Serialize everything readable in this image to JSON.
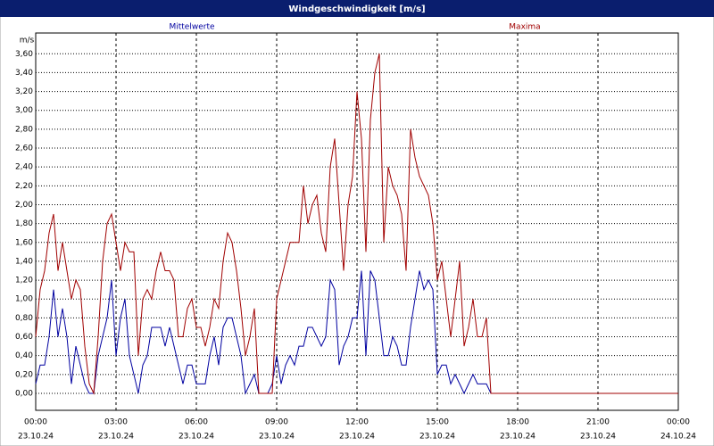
{
  "chart_data": {
    "type": "line",
    "title": "Windgeschwindigkeit [m/s]",
    "y_label": "m/s",
    "x": [
      0,
      10,
      20,
      30,
      40,
      50,
      60,
      70,
      80,
      90,
      100,
      110,
      120,
      130,
      140,
      150,
      160,
      170,
      180,
      190,
      200,
      210,
      220,
      230,
      240,
      250,
      260,
      270,
      280,
      290,
      300,
      310,
      320,
      330,
      340,
      350,
      360,
      370,
      380,
      390,
      400,
      410,
      420,
      430,
      440,
      450,
      460,
      470,
      480,
      490,
      500,
      510,
      520,
      530,
      540,
      550,
      560,
      570,
      580,
      590,
      600,
      610,
      620,
      630,
      640,
      650,
      660,
      670,
      680,
      690,
      700,
      710,
      720,
      730,
      740,
      750,
      760,
      770,
      780,
      790,
      800,
      810,
      820,
      830,
      840,
      850,
      860,
      870,
      880,
      890,
      900,
      910,
      920,
      930,
      940,
      950,
      960,
      970,
      980,
      990,
      1000,
      1010,
      1020,
      1440
    ],
    "series": [
      {
        "name": "Mittelwerte",
        "color": "#0000a0",
        "values": [
          0.1,
          0.3,
          0.3,
          0.6,
          1.1,
          0.6,
          0.9,
          0.6,
          0.1,
          0.5,
          0.3,
          0.1,
          0.0,
          0.0,
          0.4,
          0.6,
          0.8,
          1.2,
          0.4,
          0.8,
          1.0,
          0.4,
          0.2,
          0.0,
          0.3,
          0.4,
          0.7,
          0.7,
          0.7,
          0.5,
          0.7,
          0.5,
          0.3,
          0.1,
          0.3,
          0.3,
          0.1,
          0.1,
          0.1,
          0.4,
          0.6,
          0.3,
          0.7,
          0.8,
          0.8,
          0.6,
          0.4,
          0.0,
          0.1,
          0.2,
          0.0,
          0.0,
          0.0,
          0.1,
          0.4,
          0.1,
          0.3,
          0.4,
          0.3,
          0.5,
          0.5,
          0.7,
          0.7,
          0.6,
          0.5,
          0.6,
          1.2,
          1.1,
          0.3,
          0.5,
          0.6,
          0.8,
          0.8,
          1.3,
          0.4,
          1.3,
          1.2,
          0.8,
          0.4,
          0.4,
          0.6,
          0.5,
          0.3,
          0.3,
          0.7,
          1.0,
          1.3,
          1.1,
          1.2,
          1.1,
          0.2,
          0.3,
          0.3,
          0.1,
          0.2,
          0.1,
          0.0,
          0.1,
          0.2,
          0.1,
          0.1,
          0.1,
          0.0,
          0
        ]
      },
      {
        "name": "Maxima",
        "color": "#a00000",
        "values": [
          0.6,
          1.1,
          1.3,
          1.7,
          1.9,
          1.3,
          1.6,
          1.3,
          1.0,
          1.2,
          1.1,
          0.5,
          0.1,
          0.0,
          0.6,
          1.4,
          1.8,
          1.9,
          1.6,
          1.3,
          1.6,
          1.5,
          1.5,
          0.4,
          1.0,
          1.1,
          1.0,
          1.3,
          1.5,
          1.3,
          1.3,
          1.2,
          0.6,
          0.6,
          0.9,
          1.0,
          0.7,
          0.7,
          0.5,
          0.7,
          1.0,
          0.9,
          1.4,
          1.7,
          1.6,
          1.3,
          0.9,
          0.4,
          0.6,
          0.9,
          0.0,
          0.0,
          0.0,
          0.0,
          1.0,
          1.2,
          1.4,
          1.6,
          1.6,
          1.6,
          2.2,
          1.8,
          2.0,
          2.1,
          1.7,
          1.5,
          2.4,
          2.7,
          2.0,
          1.3,
          2.0,
          2.3,
          3.2,
          2.7,
          1.5,
          2.9,
          3.4,
          3.6,
          1.6,
          2.4,
          2.2,
          2.1,
          1.9,
          1.3,
          2.8,
          2.5,
          2.3,
          2.2,
          2.1,
          1.8,
          1.2,
          1.4,
          1.0,
          0.6,
          1.0,
          1.4,
          0.5,
          0.7,
          1.0,
          0.6,
          0.6,
          0.8,
          0.0,
          0
        ]
      }
    ],
    "xlim": [
      0,
      1440
    ],
    "xticks": [
      {
        "value": 0,
        "label": "00:00",
        "sublabel": "23.10.24"
      },
      {
        "value": 180,
        "label": "03:00",
        "sublabel": "23.10.24"
      },
      {
        "value": 360,
        "label": "06:00",
        "sublabel": "23.10.24"
      },
      {
        "value": 540,
        "label": "09:00",
        "sublabel": "23.10.24"
      },
      {
        "value": 720,
        "label": "12:00",
        "sublabel": "23.10.24"
      },
      {
        "value": 900,
        "label": "15:00",
        "sublabel": "23.10.24"
      },
      {
        "value": 1080,
        "label": "18:00",
        "sublabel": "23.10.24"
      },
      {
        "value": 1260,
        "label": "21:00",
        "sublabel": "23.10.24"
      },
      {
        "value": 1440,
        "label": "00:00",
        "sublabel": "24.10.24"
      }
    ],
    "ylim": [
      -0.18,
      3.82
    ],
    "yticks": [
      {
        "value": 0,
        "label": "0,00"
      },
      {
        "value": 0.2,
        "label": "0,20"
      },
      {
        "value": 0.4,
        "label": "0,40"
      },
      {
        "value": 0.6,
        "label": "0,60"
      },
      {
        "value": 0.8,
        "label": "0,80"
      },
      {
        "value": 1,
        "label": "1,00"
      },
      {
        "value": 1.2,
        "label": "1,20"
      },
      {
        "value": 1.4,
        "label": "1,40"
      },
      {
        "value": 1.6,
        "label": "1,60"
      },
      {
        "value": 1.8,
        "label": "1,80"
      },
      {
        "value": 2,
        "label": "2,00"
      },
      {
        "value": 2.2,
        "label": "2,20"
      },
      {
        "value": 2.4,
        "label": "2,40"
      },
      {
        "value": 2.6,
        "label": "2,60"
      },
      {
        "value": 2.8,
        "label": "2,80"
      },
      {
        "value": 3,
        "label": "3,00"
      },
      {
        "value": 3.2,
        "label": "3,20"
      },
      {
        "value": 3.4,
        "label": "3,40"
      },
      {
        "value": 3.6,
        "label": "3,60"
      }
    ],
    "grid": true,
    "legend": "top"
  }
}
